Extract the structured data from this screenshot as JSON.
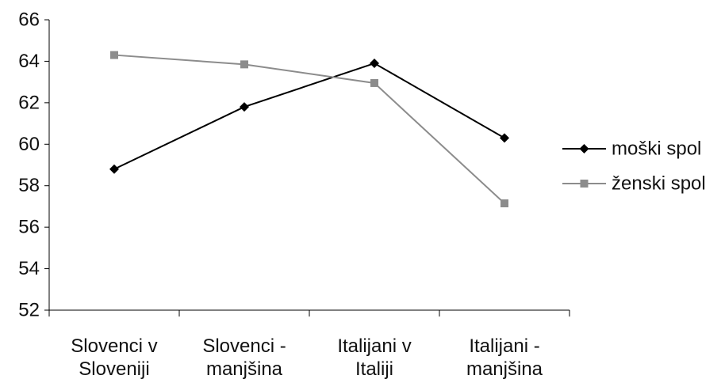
{
  "chart_data": {
    "type": "line",
    "title": "",
    "xlabel": "",
    "ylabel": "",
    "categories": [
      [
        "Slovenci v",
        "Sloveniji"
      ],
      [
        "Slovenci -",
        "manjšina"
      ],
      [
        "Italijani v",
        "Italiji"
      ],
      [
        "Italijani -",
        "manjšina"
      ]
    ],
    "ylim": [
      52,
      66
    ],
    "yticks": [
      "52",
      "54",
      "56",
      "58",
      "60",
      "62",
      "64",
      "66"
    ],
    "grid": false,
    "legend_position": "right",
    "series": [
      {
        "name": "moški spol",
        "values": [
          58.8,
          61.8,
          63.9,
          60.3
        ],
        "color": "#000000",
        "marker": "diamond"
      },
      {
        "name": "ženski spol",
        "values": [
          64.3,
          63.85,
          62.95,
          57.15
        ],
        "color": "#8c8c8c",
        "marker": "square"
      }
    ]
  }
}
